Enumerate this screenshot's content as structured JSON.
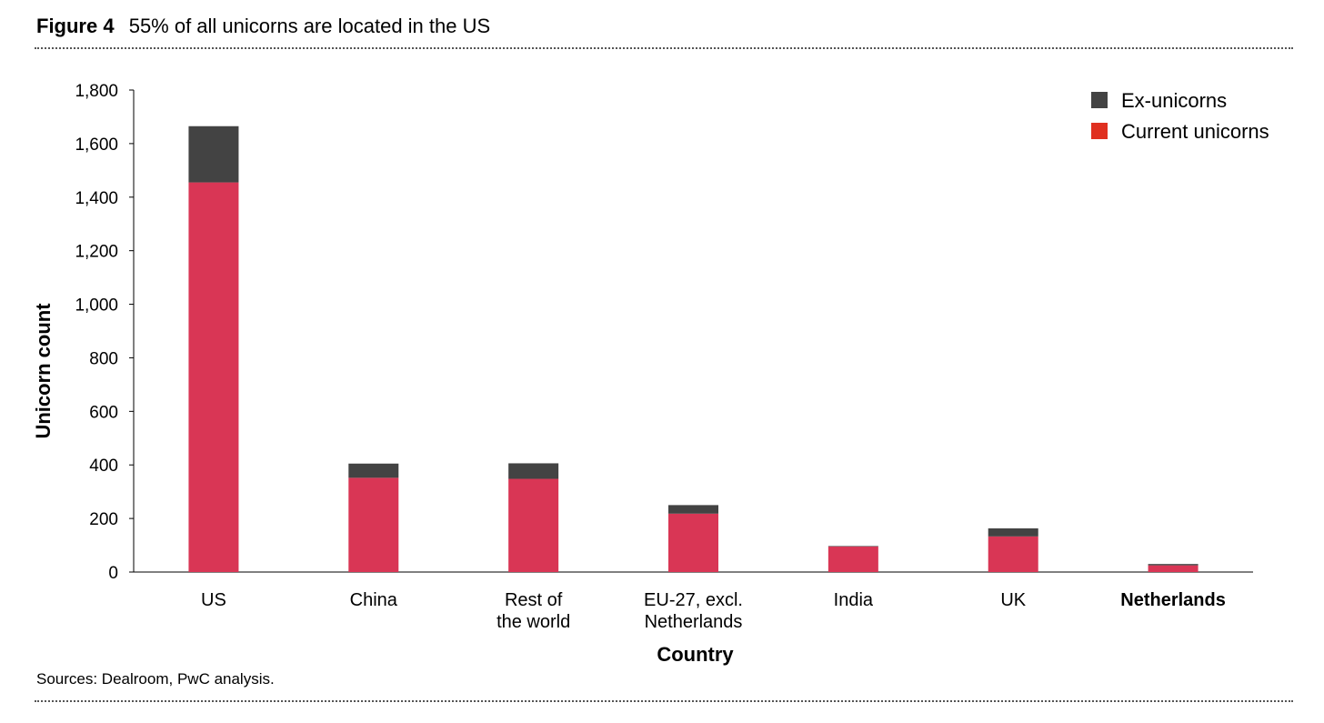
{
  "header": {
    "figure_label": "Figure 4",
    "title": "55% of all unicorns are located in the US"
  },
  "footer": {
    "sources": "Sources: Dealroom, PwC analysis."
  },
  "colors": {
    "ex_unicorns": "#434343",
    "current_unicorns": "#d93655",
    "legend_current_swatch": "#e03020",
    "axis": "#000000"
  },
  "chart_data": {
    "type": "bar",
    "stacked": true,
    "title": "55% of all unicorns are located in the US",
    "xlabel": "Country",
    "ylabel": "Unicorn count",
    "categories": [
      [
        "US"
      ],
      [
        "China"
      ],
      [
        "Rest of",
        "the world"
      ],
      [
        "EU-27, excl.",
        "Netherlands"
      ],
      [
        "India"
      ],
      [
        "UK"
      ],
      [
        "Netherlands"
      ]
    ],
    "highlight_category": "Netherlands",
    "series": [
      {
        "name": "Current unicorns",
        "color": "#d93655",
        "values": [
          1455,
          352,
          348,
          218,
          95,
          133,
          25
        ]
      },
      {
        "name": "Ex-unicorns",
        "color": "#434343",
        "values": [
          210,
          53,
          58,
          32,
          2,
          30,
          5
        ]
      }
    ],
    "legend_order": [
      "Ex-unicorns",
      "Current unicorns"
    ],
    "ylim": [
      0,
      1800
    ],
    "yticks": [
      0,
      200,
      400,
      600,
      800,
      1000,
      1200,
      1400,
      1600,
      1800
    ],
    "ytick_labels": [
      "0",
      "200",
      "400",
      "600",
      "800",
      "1,000",
      "1,200",
      "1,400",
      "1,600",
      "1,800"
    ],
    "grid": false,
    "legend_position": "top-right"
  }
}
